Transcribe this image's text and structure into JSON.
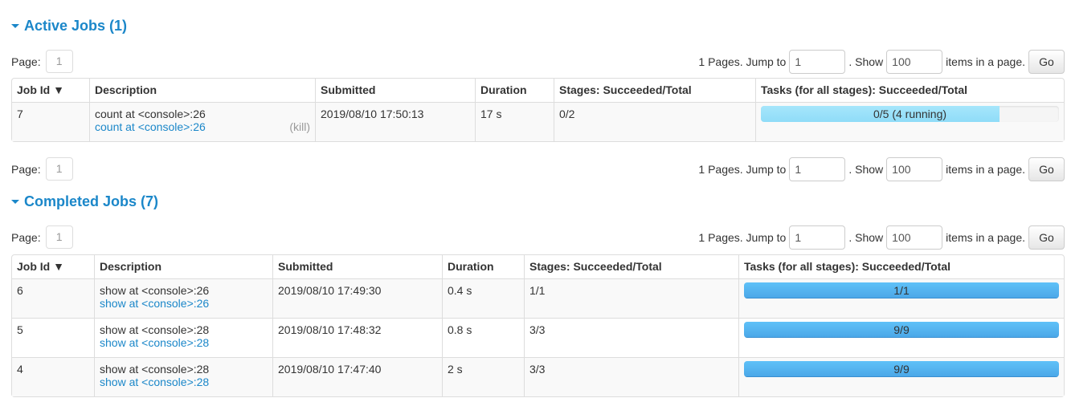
{
  "active": {
    "title": "Active Jobs (1)",
    "page_label": "Page:",
    "page": "1",
    "pages_text": "1 Pages. Jump to",
    "jump_value": "1",
    "show_text": ". Show",
    "show_value": "100",
    "items_text": "items in a page.",
    "go": "Go",
    "headers": [
      "Job Id ▼",
      "Description",
      "Submitted",
      "Duration",
      "Stages: Succeeded/Total",
      "Tasks (for all stages): Succeeded/Total"
    ],
    "rows": [
      {
        "id": "7",
        "desc": "count at <console>:26",
        "link": "count at <console>:26",
        "kill": "(kill)",
        "submitted": "2019/08/10 17:50:13",
        "duration": "17 s",
        "stages": "0/2",
        "tasks": "0/5 (4 running)",
        "succeeded": 0,
        "running": 4,
        "total": 5
      }
    ]
  },
  "completed": {
    "title": "Completed Jobs (7)",
    "page_label": "Page:",
    "page": "1",
    "pages_text": "1 Pages. Jump to",
    "jump_value": "1",
    "show_text": ". Show",
    "show_value": "100",
    "items_text": "items in a page.",
    "go": "Go",
    "headers": [
      "Job Id ▼",
      "Description",
      "Submitted",
      "Duration",
      "Stages: Succeeded/Total",
      "Tasks (for all stages): Succeeded/Total"
    ],
    "rows": [
      {
        "id": "6",
        "desc": "show at <console>:26",
        "link": "show at <console>:26",
        "submitted": "2019/08/10 17:49:30",
        "duration": "0.4 s",
        "stages": "1/1",
        "tasks": "1/1",
        "succeeded": 1,
        "running": 0,
        "total": 1
      },
      {
        "id": "5",
        "desc": "show at <console>:28",
        "link": "show at <console>:28",
        "submitted": "2019/08/10 17:48:32",
        "duration": "0.8 s",
        "stages": "3/3",
        "tasks": "9/9",
        "succeeded": 9,
        "running": 0,
        "total": 9
      },
      {
        "id": "4",
        "desc": "show at <console>:28",
        "link": "show at <console>:28",
        "submitted": "2019/08/10 17:47:40",
        "duration": "2 s",
        "stages": "3/3",
        "tasks": "9/9",
        "succeeded": 9,
        "running": 0,
        "total": 9
      }
    ]
  },
  "bottom_pager": {
    "page_label": "Page:",
    "page": "1",
    "pages_text": "1 Pages. Jump to",
    "jump_value": "1",
    "show_text": ". Show",
    "show_value": "100",
    "items_text": "items in a page.",
    "go": "Go"
  },
  "colors": {
    "link": "#1b87c9",
    "completed_bar": "#4ba8e8",
    "running_bar": "#8fdcf8"
  }
}
